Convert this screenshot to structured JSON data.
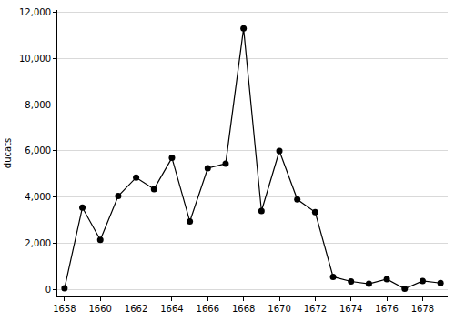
{
  "chart_data": {
    "type": "line",
    "y_label": "ducats",
    "x": [
      1658,
      1659,
      1660,
      1661,
      1662,
      1663,
      1664,
      1665,
      1666,
      1667,
      1668,
      1669,
      1670,
      1671,
      1672,
      1673,
      1674,
      1675,
      1676,
      1677,
      1678,
      1679
    ],
    "values": [
      50,
      3550,
      2150,
      4050,
      4850,
      4350,
      5700,
      2950,
      5250,
      5450,
      11300,
      3400,
      6000,
      3900,
      3350,
      550,
      350,
      250,
      450,
      30,
      370,
      280
    ],
    "color": "#000000",
    "marker": "circle",
    "line_style": "solid",
    "xlim": [
      1657.6,
      1679.4
    ],
    "xticks": [
      1658,
      1660,
      1662,
      1664,
      1666,
      1668,
      1670,
      1672,
      1674,
      1676,
      1678
    ],
    "ylim": [
      -300,
      12100
    ],
    "yticks": [
      0,
      {
        "value": 2000,
        "label": "2,000"
      },
      {
        "value": 4000,
        "label": "4,000"
      },
      {
        "value": 6000,
        "label": "6,000"
      },
      {
        "value": 8000,
        "label": "8,000"
      },
      {
        "value": 10000,
        "label": "10,000"
      },
      {
        "value": 12000,
        "label": "12,000"
      }
    ],
    "grid": true
  }
}
